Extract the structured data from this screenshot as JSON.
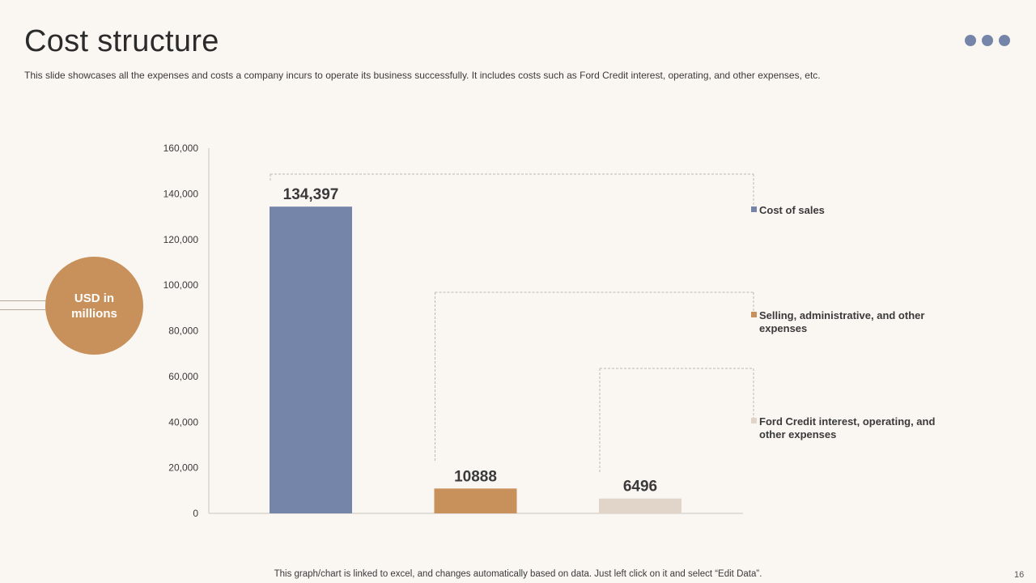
{
  "slide": {
    "title": "Cost structure",
    "subtitle": "This slide showcases all the expenses and costs a company incurs to operate its business successfully. It includes costs such as Ford Credit interest, operating, and other expenses, etc.",
    "unit_label": "USD in millions",
    "footer": "This graph/chart is linked to excel,  and changes automatically based on data. Just left click on it and select “Edit Data”.",
    "page_number": "16"
  },
  "colors": {
    "accent_blue": "#7585aa",
    "accent_tan": "#c8915c",
    "accent_light": "#e0d5c8",
    "background": "#faf7f3"
  },
  "chart_data": {
    "type": "bar",
    "categories": [
      "Cost of sales",
      "Selling, administrative, and other expenses",
      "Ford Credit interest, operating, and other expenses"
    ],
    "values": [
      134397,
      10888,
      6496
    ],
    "data_labels": [
      "134,397",
      "10888",
      "6496"
    ],
    "colors": [
      "#7585aa",
      "#c8915c",
      "#e0d5c8"
    ],
    "ylim": [
      0,
      160000
    ],
    "yticks": [
      0,
      20000,
      40000,
      60000,
      80000,
      100000,
      120000,
      140000,
      160000
    ],
    "ytick_labels": [
      "0",
      "20,000",
      "40,000",
      "60,000",
      "80,000",
      "100,000",
      "120,000",
      "140,000",
      "160,000"
    ],
    "grid": false,
    "legend_position": "right",
    "legend_style": "callout-brackets"
  }
}
